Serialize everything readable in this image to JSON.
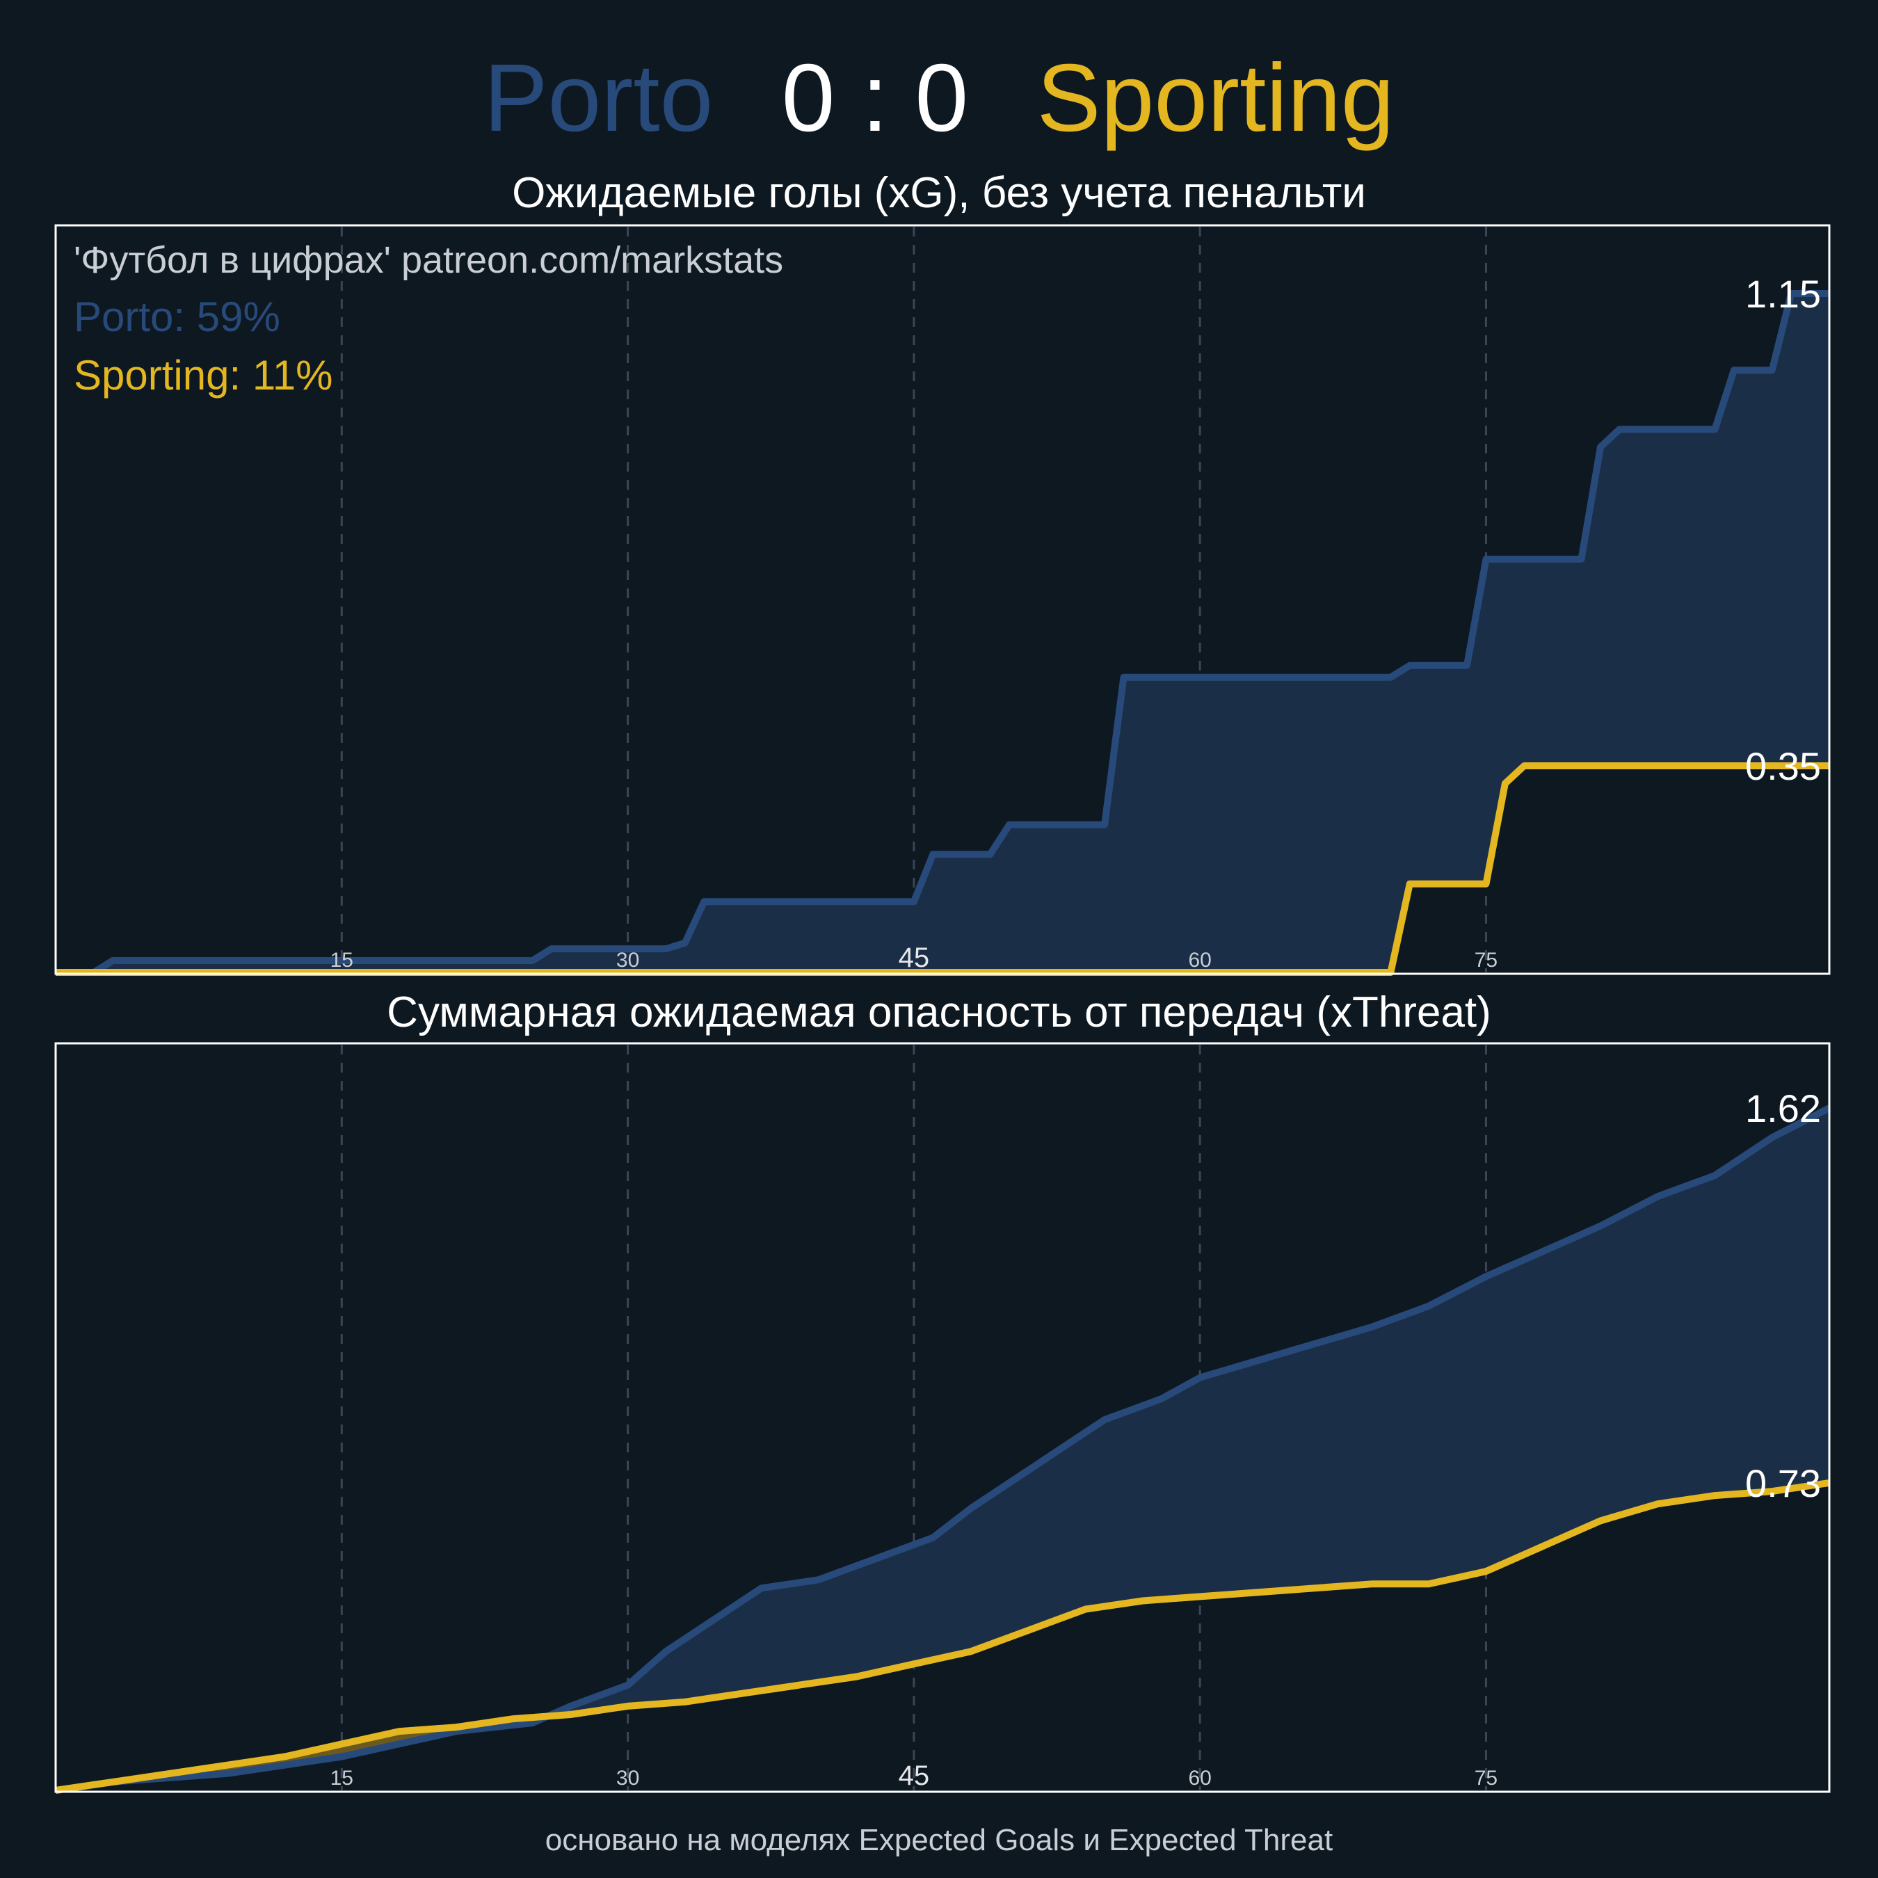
{
  "header": {
    "home_team": "Porto",
    "score": "0 : 0",
    "away_team": "Sporting"
  },
  "colors": {
    "background": "#0e1821",
    "home": "#284a7a",
    "home_fill": "#1b2e48",
    "away": "#e4b721",
    "away_fill": "#6b5a1f",
    "text": "#ffffff",
    "muted": "#c9ced4",
    "grid": "#3a4656"
  },
  "credit": "'Футбол в цифрах' patreon.com/markstats",
  "footer": "основано на моделях Expected Goals и Expected Threat",
  "chart_data": [
    {
      "type": "line",
      "title": "Ожидаемые голы (xG), без учета пенальти",
      "xlabel": "",
      "ylabel": "",
      "xlim": [
        0,
        93
      ],
      "ylim": [
        0,
        1.15
      ],
      "xticks": [
        "15",
        "30",
        "45",
        "60",
        "75"
      ],
      "grid": true,
      "legend": [
        {
          "text": "Porto: 59%",
          "team": "home"
        },
        {
          "text": "Sporting: 11%",
          "team": "away"
        }
      ],
      "end_labels": [
        "1.15",
        "0.35"
      ],
      "series": [
        {
          "name": "Porto",
          "x": [
            0,
            2,
            3,
            25,
            26,
            32,
            33,
            34,
            45,
            46,
            49,
            50,
            55,
            56,
            70,
            71,
            74,
            75,
            80,
            81,
            82,
            87,
            88,
            90,
            91,
            93
          ],
          "y": [
            0,
            0,
            0.02,
            0.02,
            0.04,
            0.04,
            0.05,
            0.12,
            0.12,
            0.2,
            0.2,
            0.25,
            0.25,
            0.5,
            0.5,
            0.52,
            0.52,
            0.7,
            0.7,
            0.89,
            0.92,
            0.92,
            1.02,
            1.02,
            1.15,
            1.15
          ]
        },
        {
          "name": "Sporting",
          "x": [
            0,
            70,
            71,
            75,
            76,
            77,
            93
          ],
          "y": [
            0,
            0,
            0.15,
            0.15,
            0.32,
            0.35,
            0.35
          ]
        }
      ]
    },
    {
      "type": "line",
      "title": "Суммарная ожидаемая опасность от передач (xThreat)",
      "xlabel": "",
      "ylabel": "",
      "xlim": [
        0,
        93
      ],
      "ylim": [
        0,
        1.62
      ],
      "xticks": [
        "15",
        "30",
        "45",
        "60",
        "75"
      ],
      "grid": true,
      "end_labels": [
        "1.62",
        "0.73"
      ],
      "series": [
        {
          "name": "Porto",
          "x": [
            0,
            3,
            6,
            9,
            12,
            15,
            18,
            21,
            23,
            25,
            27,
            30,
            32,
            35,
            37,
            40,
            43,
            46,
            48,
            51,
            53,
            55,
            58,
            60,
            63,
            66,
            69,
            72,
            75,
            78,
            81,
            84,
            87,
            90,
            93
          ],
          "y": [
            0,
            0.02,
            0.03,
            0.04,
            0.06,
            0.08,
            0.11,
            0.14,
            0.15,
            0.16,
            0.2,
            0.25,
            0.33,
            0.42,
            0.48,
            0.5,
            0.55,
            0.6,
            0.67,
            0.76,
            0.82,
            0.88,
            0.93,
            0.98,
            1.02,
            1.06,
            1.1,
            1.15,
            1.22,
            1.28,
            1.34,
            1.41,
            1.46,
            1.55,
            1.62
          ]
        },
        {
          "name": "Sporting",
          "x": [
            0,
            3,
            6,
            9,
            12,
            15,
            18,
            21,
            24,
            27,
            30,
            33,
            36,
            39,
            42,
            45,
            48,
            51,
            54,
            57,
            60,
            63,
            66,
            69,
            72,
            75,
            78,
            81,
            84,
            87,
            90,
            93
          ],
          "y": [
            0,
            0.02,
            0.04,
            0.06,
            0.08,
            0.11,
            0.14,
            0.15,
            0.17,
            0.18,
            0.2,
            0.21,
            0.23,
            0.25,
            0.27,
            0.3,
            0.33,
            0.38,
            0.43,
            0.45,
            0.46,
            0.47,
            0.48,
            0.49,
            0.49,
            0.52,
            0.58,
            0.64,
            0.68,
            0.7,
            0.71,
            0.73
          ]
        }
      ]
    }
  ]
}
